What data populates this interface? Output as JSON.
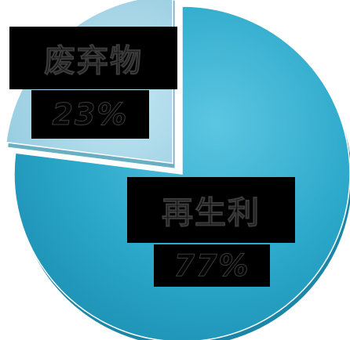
{
  "chart_data": {
    "type": "pie",
    "title": "",
    "categories": [
      "废弃物",
      "再生利"
    ],
    "values": [
      23,
      77
    ],
    "data_labels": [
      "23%",
      "77%"
    ],
    "exploded": [
      "废弃物"
    ],
    "colors": {
      "废弃物": "#9fd3e6",
      "再生利": "#2aa7c9",
      "废弃物_shadow": "#6aaec4",
      "再生利_shadow": "#1c86a6"
    },
    "legend": "none"
  }
}
